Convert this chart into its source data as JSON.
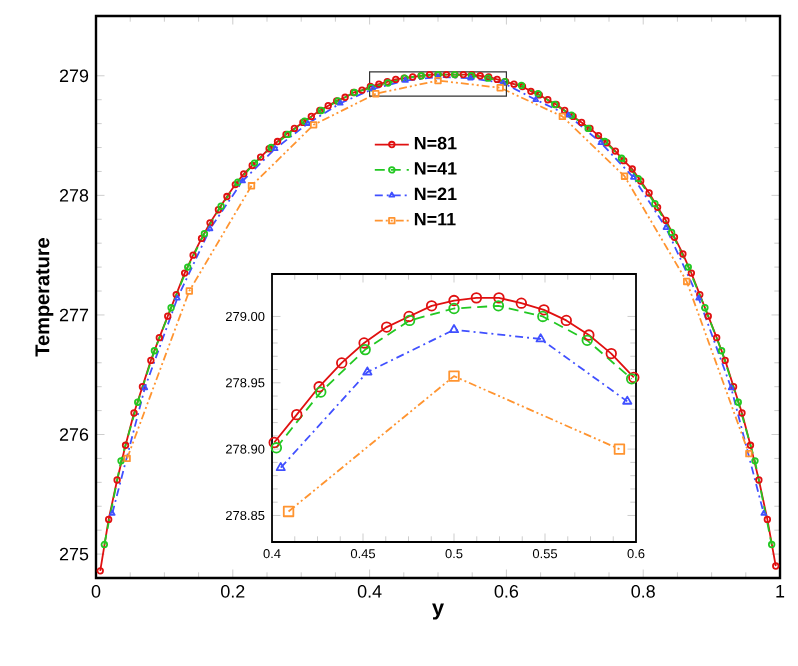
{
  "chart_data": [
    {
      "type": "line",
      "xlabel": "y",
      "ylabel": "Temperature",
      "xlim": [
        0,
        1
      ],
      "ylim": [
        274.8,
        279.5
      ],
      "xticks": [
        0,
        0.2,
        0.4,
        0.6,
        0.8,
        1
      ],
      "yticks": [
        275,
        276,
        277,
        278,
        279
      ],
      "legend": "top",
      "series": [
        {
          "name": "N=81",
          "color": "#e01010",
          "marker": "circle",
          "line_style": "solid",
          "x": [
            0.0062,
            0.0185,
            0.0309,
            0.0432,
            0.0556,
            0.0679,
            0.0802,
            0.0926,
            0.1049,
            0.1173,
            0.1296,
            0.142,
            0.1543,
            0.1667,
            0.179,
            0.1914,
            0.2037,
            0.216,
            0.2284,
            0.2407,
            0.2531,
            0.2654,
            0.2778,
            0.2901,
            0.3025,
            0.3148,
            0.3272,
            0.3395,
            0.3519,
            0.3642,
            0.3765,
            0.3889,
            0.4012,
            0.4136,
            0.4259,
            0.4383,
            0.4506,
            0.463,
            0.4753,
            0.4877,
            0.5,
            0.5123,
            0.5247,
            0.537,
            0.5494,
            0.5617,
            0.5741,
            0.5864,
            0.5988,
            0.6111,
            0.6235,
            0.6358,
            0.6481,
            0.6605,
            0.6728,
            0.6852,
            0.6975,
            0.7099,
            0.7222,
            0.7346,
            0.7469,
            0.7593,
            0.7716,
            0.784,
            0.7963,
            0.8086,
            0.821,
            0.8333,
            0.8457,
            0.858,
            0.8704,
            0.8827,
            0.8951,
            0.9074,
            0.9198,
            0.9321,
            0.9444,
            0.9568,
            0.9691,
            0.9815,
            0.9938
          ],
          "values": [
            274.86,
            275.29,
            275.62,
            275.91,
            276.18,
            276.4,
            276.62,
            276.81,
            276.99,
            277.17,
            277.35,
            277.5,
            277.64,
            277.77,
            277.88,
            277.99,
            278.09,
            278.18,
            278.25,
            278.32,
            278.39,
            278.45,
            278.51,
            278.56,
            278.61,
            278.66,
            278.71,
            278.75,
            278.79,
            278.82,
            278.86,
            278.88,
            278.91,
            278.93,
            278.95,
            278.97,
            278.98,
            278.99,
            279.0,
            279.01,
            279.01,
            279.01,
            279.01,
            279.01,
            279.01,
            279.0,
            278.99,
            278.97,
            278.95,
            278.93,
            278.91,
            278.87,
            278.84,
            278.8,
            278.76,
            278.71,
            278.66,
            278.61,
            278.56,
            278.5,
            278.44,
            278.37,
            278.29,
            278.22,
            278.12,
            278.02,
            277.9,
            277.79,
            277.65,
            277.51,
            277.35,
            277.17,
            276.99,
            276.81,
            276.62,
            276.4,
            276.18,
            275.91,
            275.62,
            275.29,
            274.9
          ]
        },
        {
          "name": "N=41",
          "color": "#22c822",
          "marker": "circle",
          "line_style": "dashed",
          "x": [
            0.0122,
            0.0366,
            0.061,
            0.0854,
            0.1098,
            0.1341,
            0.1585,
            0.1829,
            0.2073,
            0.2317,
            0.2561,
            0.2805,
            0.3049,
            0.3293,
            0.3537,
            0.378,
            0.4024,
            0.4268,
            0.4512,
            0.4756,
            0.5,
            0.5244,
            0.5488,
            0.5732,
            0.5976,
            0.622,
            0.6463,
            0.6707,
            0.6951,
            0.7195,
            0.7439,
            0.7683,
            0.7927,
            0.8171,
            0.8415,
            0.8659,
            0.8902,
            0.9146,
            0.939,
            0.9634,
            0.9878
          ],
          "values": [
            275.08,
            275.78,
            276.27,
            276.7,
            277.06,
            277.4,
            277.68,
            277.91,
            278.11,
            278.27,
            278.4,
            278.51,
            278.62,
            278.71,
            278.79,
            278.86,
            278.9,
            278.94,
            278.98,
            279.0,
            279.01,
            279.01,
            279.0,
            278.98,
            278.95,
            278.92,
            278.85,
            278.76,
            278.67,
            278.56,
            278.45,
            278.31,
            278.14,
            277.93,
            277.69,
            277.4,
            277.06,
            276.7,
            276.27,
            275.78,
            275.08
          ]
        },
        {
          "name": "N=21",
          "color": "#4050ff",
          "marker": "triangle",
          "line_style": "dashdot",
          "x": [
            0.0238,
            0.0714,
            0.119,
            0.1667,
            0.2143,
            0.2619,
            0.3095,
            0.3571,
            0.4048,
            0.4524,
            0.5,
            0.5476,
            0.5952,
            0.6429,
            0.6905,
            0.7381,
            0.7857,
            0.8333,
            0.881,
            0.9286,
            0.9762
          ],
          "values": [
            275.34,
            276.39,
            277.14,
            277.72,
            278.12,
            278.39,
            278.6,
            278.77,
            278.89,
            278.96,
            278.99,
            278.98,
            278.94,
            278.8,
            278.67,
            278.44,
            278.15,
            277.73,
            277.14,
            276.39,
            275.34
          ]
        },
        {
          "name": "N=11",
          "color": "#ff9430",
          "marker": "square",
          "line_style": "dashdotdot",
          "x": [
            0.0455,
            0.1364,
            0.2273,
            0.3182,
            0.4091,
            0.5,
            0.5909,
            0.6818,
            0.7727,
            0.8636,
            0.9545
          ],
          "values": [
            275.8,
            277.2,
            278.08,
            278.59,
            278.85,
            278.96,
            278.9,
            278.66,
            278.16,
            277.28,
            275.84
          ]
        }
      ]
    },
    {
      "type": "line",
      "xlim": [
        0.4,
        0.6
      ],
      "ylim": [
        278.83,
        279.032
      ],
      "xticks": [
        0.4,
        0.45,
        0.5,
        0.55,
        0.6
      ],
      "yticks": [
        {
          "value": 278.85,
          "label": "278.85"
        },
        {
          "value": 278.9,
          "label": "278.90"
        },
        {
          "value": 278.95,
          "label": "278.95"
        },
        {
          "value": 279.0,
          "label": "279.00"
        }
      ],
      "series": [
        {
          "color": "#e01010",
          "marker": "circle",
          "line_style": "solid",
          "x": [
            0.4012,
            0.4136,
            0.4259,
            0.4383,
            0.4506,
            0.463,
            0.4753,
            0.4877,
            0.5,
            0.5123,
            0.5247,
            0.537,
            0.5494,
            0.5617,
            0.5741,
            0.5864,
            0.5988
          ],
          "values": [
            278.905,
            278.926,
            278.947,
            278.965,
            278.98,
            278.992,
            279.0,
            279.008,
            279.012,
            279.014,
            279.014,
            279.01,
            279.005,
            278.997,
            278.986,
            278.972,
            278.954
          ]
        },
        {
          "color": "#22c822",
          "marker": "circle",
          "line_style": "dashed",
          "x": [
            0.4024,
            0.4268,
            0.4512,
            0.4756,
            0.5,
            0.5244,
            0.5488,
            0.5732,
            0.5976
          ],
          "values": [
            278.901,
            278.943,
            278.975,
            278.997,
            279.006,
            279.008,
            279.0,
            278.982,
            278.953
          ]
        },
        {
          "color": "#4050ff",
          "marker": "triangle",
          "line_style": "dashdot",
          "x": [
            0.4048,
            0.4524,
            0.5,
            0.5476,
            0.5952
          ],
          "values": [
            278.886,
            278.958,
            278.99,
            278.983,
            278.936
          ]
        },
        {
          "color": "#ff9430",
          "marker": "square",
          "line_style": "dashdotdot",
          "x": [
            0.4091,
            0.5,
            0.5909
          ],
          "values": [
            278.853,
            278.955,
            278.9
          ]
        }
      ]
    }
  ]
}
